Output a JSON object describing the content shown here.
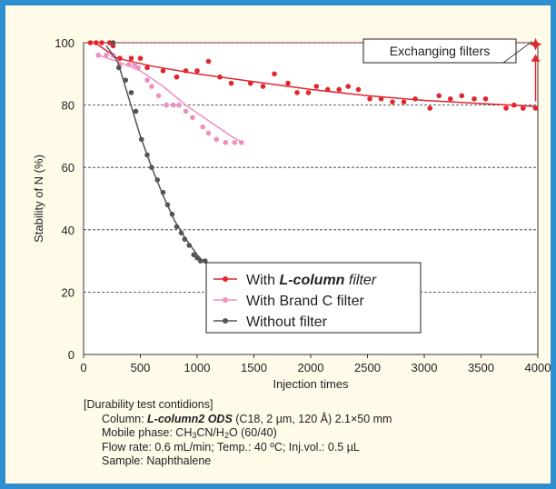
{
  "chart_data": {
    "type": "scatter",
    "xlabel": "Injection times",
    "ylabel": "Stability of N (%)",
    "xlim": [
      0,
      4000
    ],
    "ylim": [
      0,
      100
    ],
    "x_ticks": [
      0,
      500,
      1000,
      1500,
      2000,
      2500,
      3000,
      3500,
      4000
    ],
    "y_ticks": [
      0,
      20,
      40,
      60,
      80,
      100
    ],
    "grid": "horizontal dashed at 20, 40, 60, 80, 100",
    "legend_position": "bottom-right",
    "annotation": "Exchanging filters",
    "colors": {
      "l_column": "#e0262e",
      "brand_c": "#ee8fc2",
      "none": "#555555",
      "border": "#2e8ece",
      "background": "#fffbe8"
    },
    "series": [
      {
        "name": "With L-column filter",
        "legend_prefix": "With ",
        "legend_emph": "L-column",
        "legend_suffix": " filter",
        "points": [
          [
            60,
            100
          ],
          [
            110,
            100
          ],
          [
            160,
            100
          ],
          [
            230,
            100
          ],
          [
            260,
            99
          ],
          [
            320,
            95
          ],
          [
            420,
            95
          ],
          [
            500,
            95
          ],
          [
            560,
            92
          ],
          [
            700,
            91
          ],
          [
            820,
            89
          ],
          [
            900,
            91
          ],
          [
            1000,
            91
          ],
          [
            1100,
            94
          ],
          [
            1200,
            89
          ],
          [
            1300,
            87
          ],
          [
            1470,
            87
          ],
          [
            1580,
            86
          ],
          [
            1680,
            90
          ],
          [
            1800,
            87
          ],
          [
            1880,
            84
          ],
          [
            1980,
            84
          ],
          [
            2050,
            86
          ],
          [
            2150,
            85
          ],
          [
            2250,
            85
          ],
          [
            2330,
            86
          ],
          [
            2420,
            85
          ],
          [
            2520,
            82
          ],
          [
            2620,
            82
          ],
          [
            2720,
            81
          ],
          [
            2820,
            81
          ],
          [
            2920,
            82
          ],
          [
            3050,
            79
          ],
          [
            3130,
            83
          ],
          [
            3230,
            82
          ],
          [
            3330,
            83
          ],
          [
            3440,
            82
          ],
          [
            3540,
            82
          ],
          [
            3720,
            79
          ],
          [
            3790,
            80
          ],
          [
            3870,
            79
          ],
          [
            3980,
            79
          ]
        ],
        "fit": [
          [
            100,
            100
          ],
          [
            300,
            95
          ],
          [
            600,
            92.5
          ],
          [
            1000,
            90
          ],
          [
            1500,
            87.5
          ],
          [
            2000,
            85
          ],
          [
            2500,
            83
          ],
          [
            3000,
            81.5
          ],
          [
            3500,
            80.5
          ],
          [
            4000,
            79.5
          ]
        ]
      },
      {
        "name": "With Brand C filter",
        "points": [
          [
            130,
            96
          ],
          [
            200,
            96
          ],
          [
            260,
            96
          ],
          [
            320,
            93
          ],
          [
            400,
            93
          ],
          [
            450,
            93
          ],
          [
            480,
            92
          ],
          [
            560,
            88
          ],
          [
            600,
            86
          ],
          [
            660,
            83
          ],
          [
            730,
            80
          ],
          [
            790,
            80
          ],
          [
            840,
            80
          ],
          [
            900,
            78
          ],
          [
            960,
            76
          ],
          [
            1050,
            73
          ],
          [
            1100,
            71
          ],
          [
            1170,
            69
          ],
          [
            1250,
            68
          ],
          [
            1330,
            68
          ],
          [
            1390,
            68
          ]
        ],
        "fit": [
          [
            130,
            96
          ],
          [
            300,
            94
          ],
          [
            500,
            91
          ],
          [
            700,
            86
          ],
          [
            900,
            80
          ],
          [
            1100,
            75
          ],
          [
            1300,
            70
          ],
          [
            1400,
            68
          ]
        ]
      },
      {
        "name": "Without filter",
        "points": [
          [
            260,
            100
          ],
          [
            310,
            92
          ],
          [
            370,
            88
          ],
          [
            420,
            84
          ],
          [
            460,
            78
          ],
          [
            510,
            69
          ],
          [
            560,
            64
          ],
          [
            600,
            60
          ],
          [
            650,
            56
          ],
          [
            700,
            52
          ],
          [
            740,
            48
          ],
          [
            780,
            45
          ],
          [
            820,
            41
          ],
          [
            860,
            39
          ],
          [
            890,
            37
          ],
          [
            930,
            35
          ],
          [
            970,
            32
          ],
          [
            1000,
            31
          ],
          [
            1030,
            30
          ],
          [
            1070,
            30
          ]
        ],
        "fit": [
          [
            200,
            99
          ],
          [
            300,
            94
          ],
          [
            400,
            82
          ],
          [
            500,
            70
          ],
          [
            600,
            60
          ],
          [
            700,
            51
          ],
          [
            800,
            43
          ],
          [
            900,
            37
          ],
          [
            1000,
            32
          ],
          [
            1050,
            30
          ]
        ]
      }
    ]
  },
  "conditions": {
    "heading": "[Durability test contidions]",
    "column_prefix": "Column: ",
    "column_name": "L-column2 ODS",
    "column_suffix": " (C18, 2 µm, 120 Å) 2.1×50 mm",
    "mobile_prefix": "Mobile phase: CH",
    "mobile_s1": "3",
    "mobile_mid": "CN/H",
    "mobile_s2": "2",
    "mobile_suffix": "O (60/40)",
    "flow": "Flow rate: 0.6 mL/min; Temp.: 40 ºC; Inj.vol.: 0.5 µL",
    "sample": "Sample: Naphthalene"
  }
}
